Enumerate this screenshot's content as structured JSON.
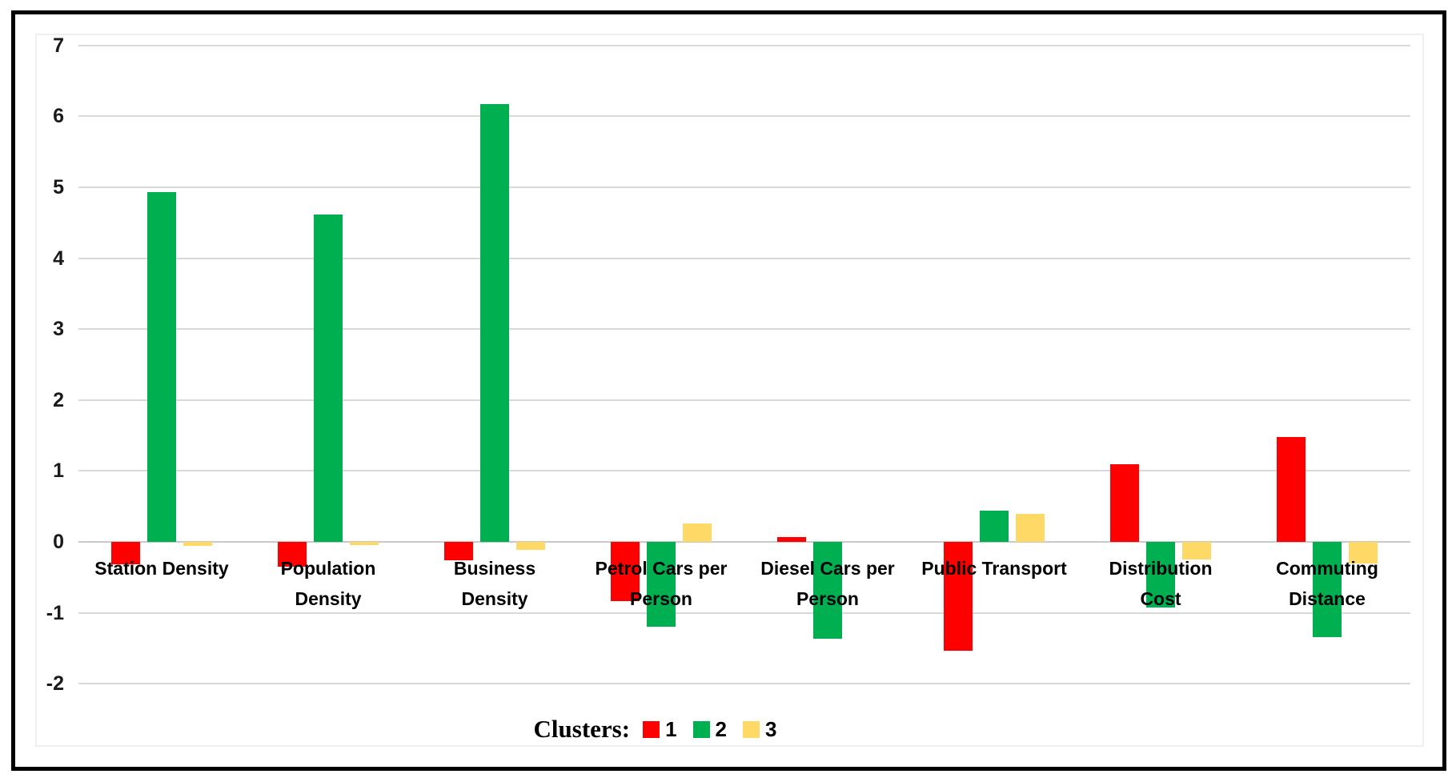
{
  "chart_data": {
    "type": "bar",
    "title": "",
    "categories": [
      "Station Density",
      "Population Density",
      "Business Density",
      "Petrol Cars per Person",
      "Diesel Cars per Person",
      "Public Transport",
      "Distribution Cost",
      "Commuting Distance"
    ],
    "category_label_lines": [
      [
        "Station Density"
      ],
      [
        "Population",
        "Density"
      ],
      [
        "Business",
        "Density"
      ],
      [
        "Petrol Cars per",
        "Person"
      ],
      [
        "Diesel Cars per",
        "Person"
      ],
      [
        "Public Transport"
      ],
      [
        "Distribution",
        "Cost"
      ],
      [
        "Commuting",
        "Distance"
      ]
    ],
    "series": [
      {
        "name": "1",
        "color": "#FF0000",
        "values": [
          -0.32,
          -0.35,
          -0.26,
          -0.83,
          0.07,
          -1.53,
          1.09,
          1.48
        ]
      },
      {
        "name": "2",
        "color": "#00B050",
        "values": [
          4.93,
          4.62,
          6.17,
          -1.2,
          -1.37,
          0.44,
          -0.93,
          -1.34
        ]
      },
      {
        "name": "3",
        "color": "#FFD966",
        "values": [
          -0.06,
          -0.05,
          -0.11,
          0.26,
          0.0,
          0.39,
          -0.25,
          -0.3
        ]
      }
    ],
    "y_axis": {
      "min": -2,
      "max": 7,
      "step": 1,
      "ticks": [
        7,
        6,
        5,
        4,
        3,
        2,
        1,
        0,
        -1,
        -2
      ]
    },
    "xlabel": "",
    "ylabel": "",
    "grid": true,
    "gridline_color": "#D9D9D9",
    "legend": {
      "title": "Clusters:",
      "position": "bottom",
      "entries": [
        "1",
        "2",
        "3"
      ]
    },
    "colors": {
      "cluster1": "#FF0000",
      "cluster2": "#00B050",
      "cluster3": "#FFD966",
      "border": "#000000",
      "background": "#FFFFFF"
    }
  }
}
